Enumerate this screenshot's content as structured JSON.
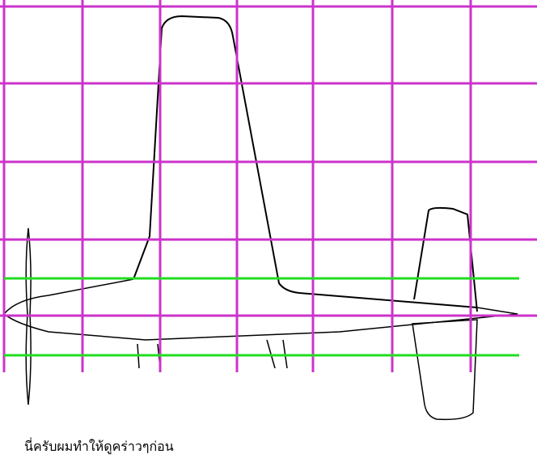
{
  "caption": "นี่ครับผมทำให้ดูคร่าวๆก่อน",
  "colors": {
    "grid": "#cc33cc",
    "guide": "#22dd22",
    "drawing": "#000000"
  }
}
